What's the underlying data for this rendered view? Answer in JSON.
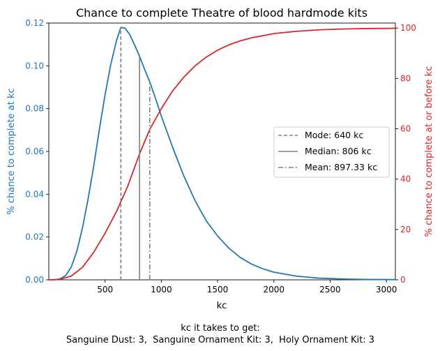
{
  "chart_data": {
    "type": "line",
    "title": "Chance to complete Theatre of blood hardmode kits",
    "xlabel": "kc",
    "ylabel_left": "% chance to complete at kc",
    "ylabel_right": "% chance to complete at or before kc",
    "xlim": [
      0,
      3080
    ],
    "ylim_left": [
      0,
      0.12
    ],
    "ylim_right": [
      0,
      102
    ],
    "x_ticks": [
      500,
      1000,
      1500,
      2000,
      2500,
      3000
    ],
    "y_left_ticks": [
      "0.00",
      "0.02",
      "0.04",
      "0.06",
      "0.08",
      "0.10",
      "0.12"
    ],
    "y_right_ticks": [
      0,
      20,
      40,
      60,
      80,
      100
    ],
    "grid": false,
    "colors": {
      "left_axis": "#1f77b4",
      "right_axis": "#d62728",
      "ref_lines": "#808080"
    },
    "series": [
      {
        "axis": "left",
        "color": "#1f77b4",
        "points": [
          [
            0,
            0
          ],
          [
            50,
            0
          ],
          [
            100,
            0.0005
          ],
          [
            150,
            0.002
          ],
          [
            200,
            0.006
          ],
          [
            250,
            0.0135
          ],
          [
            300,
            0.0245
          ],
          [
            350,
            0.038
          ],
          [
            400,
            0.0535
          ],
          [
            450,
            0.0705
          ],
          [
            500,
            0.0865
          ],
          [
            550,
            0.1005
          ],
          [
            600,
            0.1115
          ],
          [
            640,
            0.118
          ],
          [
            680,
            0.1175
          ],
          [
            720,
            0.1145
          ],
          [
            760,
            0.11
          ],
          [
            806,
            0.1045
          ],
          [
            850,
            0.0985
          ],
          [
            897,
            0.0925
          ],
          [
            950,
            0.0845
          ],
          [
            1000,
            0.0765
          ],
          [
            1100,
            0.062
          ],
          [
            1200,
            0.0485
          ],
          [
            1300,
            0.037
          ],
          [
            1400,
            0.0275
          ],
          [
            1500,
            0.0205
          ],
          [
            1600,
            0.0148
          ],
          [
            1700,
            0.0105
          ],
          [
            1800,
            0.0074
          ],
          [
            1900,
            0.0052
          ],
          [
            2000,
            0.0036
          ],
          [
            2200,
            0.0017
          ],
          [
            2400,
            0.0008
          ],
          [
            2600,
            0.0004
          ],
          [
            2800,
            0.0002
          ],
          [
            3080,
            0.0001
          ]
        ]
      },
      {
        "axis": "right",
        "color": "#d62728",
        "points": [
          [
            0,
            0
          ],
          [
            100,
            0.2
          ],
          [
            200,
            1.5
          ],
          [
            300,
            5
          ],
          [
            400,
            11
          ],
          [
            500,
            18.5
          ],
          [
            600,
            27
          ],
          [
            640,
            31
          ],
          [
            700,
            37
          ],
          [
            806,
            50
          ],
          [
            900,
            60
          ],
          [
            1000,
            68
          ],
          [
            1100,
            75
          ],
          [
            1200,
            80.5
          ],
          [
            1300,
            85
          ],
          [
            1400,
            88.5
          ],
          [
            1500,
            91.2
          ],
          [
            1600,
            93.3
          ],
          [
            1700,
            94.9
          ],
          [
            1800,
            96.1
          ],
          [
            2000,
            97.8
          ],
          [
            2200,
            98.7
          ],
          [
            2400,
            99.3
          ],
          [
            2600,
            99.6
          ],
          [
            2800,
            99.8
          ],
          [
            3080,
            99.9
          ]
        ]
      }
    ],
    "reference_lines": [
      {
        "label": "Mode: 640 kc",
        "x": 640,
        "dash": "dashed"
      },
      {
        "label": "Median: 806 kc",
        "x": 806,
        "dash": "solid"
      },
      {
        "label": "Mean: 897.33 kc",
        "x": 897.33,
        "dash": "dashdot"
      }
    ],
    "legend_position": "center-right",
    "caption_line1": "kc it takes to get:",
    "caption_line2": "Sanguine Dust: 3,  Sanguine Ornament Kit: 3,  Holy Ornament Kit: 3"
  }
}
